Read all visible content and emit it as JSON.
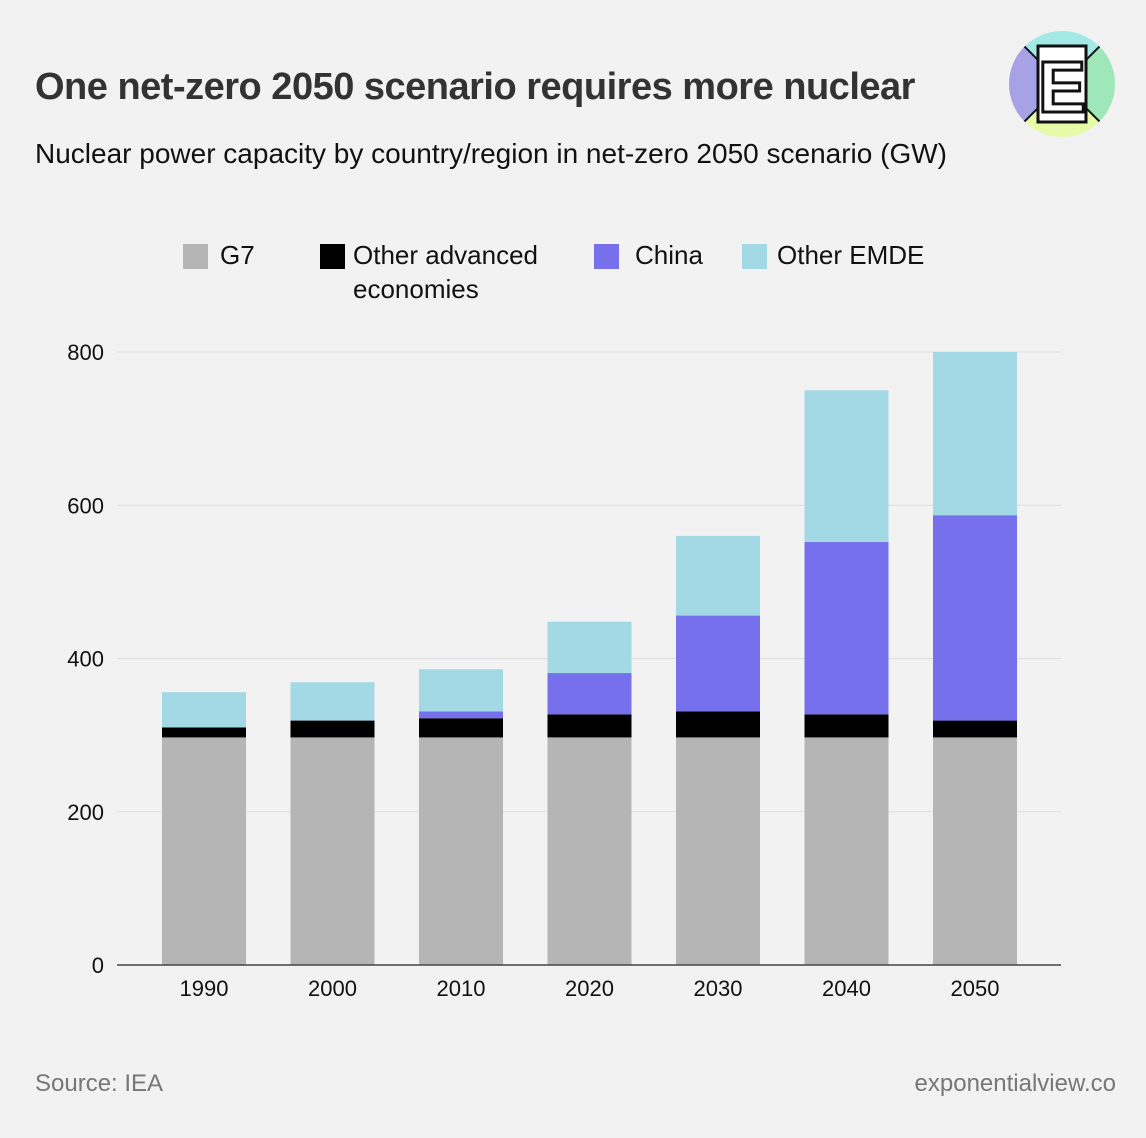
{
  "header": {
    "title": "One net-zero 2050 scenario requires more nuclear",
    "subtitle": "Nuclear power capacity by country/region in net-zero 2050 scenario (GW)"
  },
  "logo": {
    "letter": "E",
    "icon": "exponential-view-logo-icon"
  },
  "legend": {
    "items": [
      {
        "label": "G7",
        "color": "#b5b5b5"
      },
      {
        "label": "Other advanced economies",
        "color": "#000000"
      },
      {
        "label": "China",
        "color": "#7670ec"
      },
      {
        "label": "Other EMDE",
        "color": "#a2d9e5"
      }
    ]
  },
  "footer": {
    "source": "Source: IEA",
    "site": "exponentialview.co"
  },
  "chart_data": {
    "type": "bar",
    "stacked": true,
    "categories": [
      "1990",
      "2000",
      "2010",
      "2020",
      "2030",
      "2040",
      "2050"
    ],
    "series": [
      {
        "name": "G7",
        "color": "#b5b5b5",
        "values": [
          297,
          297,
          297,
          297,
          297,
          297,
          297
        ]
      },
      {
        "name": "Other advanced economies",
        "color": "#000000",
        "values": [
          13,
          22,
          25,
          30,
          34,
          30,
          22
        ]
      },
      {
        "name": "China",
        "color": "#7670ec",
        "values": [
          0,
          0,
          9,
          54,
          125,
          225,
          268
        ]
      },
      {
        "name": "Other EMDE",
        "color": "#a2d9e5",
        "values": [
          46,
          50,
          55,
          67,
          104,
          198,
          213
        ]
      }
    ],
    "yticks": [
      0,
      200,
      400,
      600,
      800
    ],
    "ylim": [
      0,
      800
    ],
    "xlabel": "",
    "ylabel": "",
    "grid": true,
    "legend_position": "top"
  }
}
